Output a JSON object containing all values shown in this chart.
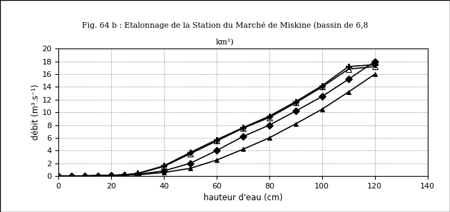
{
  "title_line1": "Fig. 64 b : Etalonnage de la Station du Marché de Miskine (bassin de 6,8",
  "title_line2": "km²)",
  "xlabel": "hauteur d'eau (cm)",
  "ylabel": "débit (m³.s⁻¹)",
  "xlim": [
    0,
    140
  ],
  "ylim": [
    0,
    20
  ],
  "xticks": [
    0,
    20,
    40,
    60,
    80,
    100,
    120,
    140
  ],
  "yticks": [
    0,
    2,
    4,
    6,
    8,
    10,
    12,
    14,
    16,
    18,
    20
  ],
  "series": [
    {
      "name": "filled_triangles_low",
      "x": [
        0,
        5,
        10,
        15,
        20,
        25,
        30,
        40,
        50,
        60,
        70,
        80,
        90,
        100,
        110,
        120
      ],
      "y": [
        0,
        0.0,
        0.02,
        0.05,
        0.08,
        0.12,
        0.18,
        0.55,
        1.2,
        2.5,
        4.2,
        6.0,
        8.2,
        10.5,
        13.2,
        16.0
      ],
      "color": "black",
      "marker": "^",
      "markersize": 5,
      "linewidth": 1.2,
      "fillstyle": "full"
    },
    {
      "name": "filled_diamonds_mid",
      "x": [
        0,
        5,
        10,
        15,
        20,
        25,
        30,
        40,
        50,
        60,
        70,
        80,
        90,
        100,
        110,
        120
      ],
      "y": [
        0,
        0.0,
        0.02,
        0.05,
        0.1,
        0.15,
        0.25,
        0.8,
        2.0,
        4.0,
        6.2,
        8.0,
        10.2,
        12.5,
        15.2,
        18.0
      ],
      "color": "black",
      "marker": "D",
      "markersize": 5,
      "linewidth": 1.2,
      "fillstyle": "full"
    },
    {
      "name": "open_triangles_high",
      "x": [
        0,
        5,
        10,
        15,
        20,
        25,
        30,
        40,
        50,
        60,
        70,
        80,
        90,
        100,
        110,
        120
      ],
      "y": [
        0,
        0.0,
        0.02,
        0.05,
        0.1,
        0.2,
        0.35,
        1.5,
        3.5,
        5.5,
        7.5,
        9.2,
        11.5,
        14.0,
        16.8,
        17.2
      ],
      "color": "black",
      "marker": "^",
      "markersize": 6,
      "linewidth": 1.2,
      "fillstyle": "none"
    },
    {
      "name": "cross_stars_high",
      "x": [
        0,
        5,
        10,
        15,
        20,
        25,
        30,
        40,
        50,
        60,
        70,
        80,
        90,
        100,
        110,
        120
      ],
      "y": [
        0,
        0.0,
        0.02,
        0.05,
        0.1,
        0.2,
        0.4,
        1.6,
        3.7,
        5.7,
        7.6,
        9.4,
        11.7,
        14.2,
        17.2,
        17.5
      ],
      "color": "black",
      "marker": "P",
      "markersize": 6,
      "linewidth": 1.2,
      "fillstyle": "full"
    }
  ],
  "background_color": "#ffffff",
  "figure_background": "#ffffff",
  "grid_color": "#999999",
  "grid_linestyle": "--",
  "title_fontsize": 8,
  "tick_fontsize": 8,
  "label_fontsize": 8.5
}
